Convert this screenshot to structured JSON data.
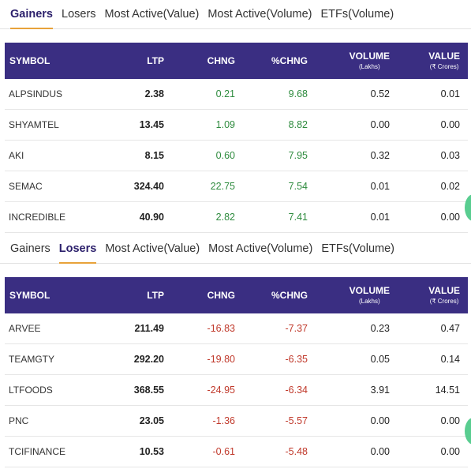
{
  "gainers_panel": {
    "tabs": [
      "Gainers",
      "Losers",
      "Most Active(Value)",
      "Most Active(Volume)",
      "ETFs(Volume)"
    ],
    "active_tab": 0,
    "headers": {
      "symbol": "SYMBOL",
      "ltp": "LTP",
      "chng": "CHNG",
      "pchng": "%CHNG",
      "volume": "VOLUME",
      "volume_unit": "(Lakhs)",
      "value": "VALUE",
      "value_unit": "(₹ Crores)"
    },
    "rows": [
      {
        "symbol": "ALPSINDUS",
        "ltp": "2.38",
        "chng": "0.21",
        "pchng": "9.68",
        "volume": "0.52",
        "value": "0.01"
      },
      {
        "symbol": "SHYAMTEL",
        "ltp": "13.45",
        "chng": "1.09",
        "pchng": "8.82",
        "volume": "0.00",
        "value": "0.00"
      },
      {
        "symbol": "AKI",
        "ltp": "8.15",
        "chng": "0.60",
        "pchng": "7.95",
        "volume": "0.32",
        "value": "0.03"
      },
      {
        "symbol": "SEMAC",
        "ltp": "324.40",
        "chng": "22.75",
        "pchng": "7.54",
        "volume": "0.01",
        "value": "0.02"
      },
      {
        "symbol": "INCREDIBLE",
        "ltp": "40.90",
        "chng": "2.82",
        "pchng": "7.41",
        "volume": "0.01",
        "value": "0.00"
      }
    ]
  },
  "losers_panel": {
    "tabs": [
      "Gainers",
      "Losers",
      "Most Active(Value)",
      "Most Active(Volume)",
      "ETFs(Volume)"
    ],
    "active_tab": 1,
    "headers": {
      "symbol": "SYMBOL",
      "ltp": "LTP",
      "chng": "CHNG",
      "pchng": "%CHNG",
      "volume": "VOLUME",
      "volume_unit": "(Lakhs)",
      "value": "VALUE",
      "value_unit": "(₹ Crores)"
    },
    "rows": [
      {
        "symbol": "ARVEE",
        "ltp": "211.49",
        "chng": "-16.83",
        "pchng": "-7.37",
        "volume": "0.23",
        "value": "0.47"
      },
      {
        "symbol": "TEAMGTY",
        "ltp": "292.20",
        "chng": "-19.80",
        "pchng": "-6.35",
        "volume": "0.05",
        "value": "0.14"
      },
      {
        "symbol": "LTFOODS",
        "ltp": "368.55",
        "chng": "-24.95",
        "pchng": "-6.34",
        "volume": "3.91",
        "value": "14.51"
      },
      {
        "symbol": "PNC",
        "ltp": "23.05",
        "chng": "-1.36",
        "pchng": "-5.57",
        "volume": "0.00",
        "value": "0.00"
      },
      {
        "symbol": "TCIFINANCE",
        "ltp": "10.53",
        "chng": "-0.61",
        "pchng": "-5.48",
        "volume": "0.00",
        "value": "0.00"
      }
    ]
  },
  "colors": {
    "header_bg": "#3a2e82",
    "active_underline": "#e8a23a",
    "positive": "#2e8b3e",
    "negative": "#c0392b"
  }
}
